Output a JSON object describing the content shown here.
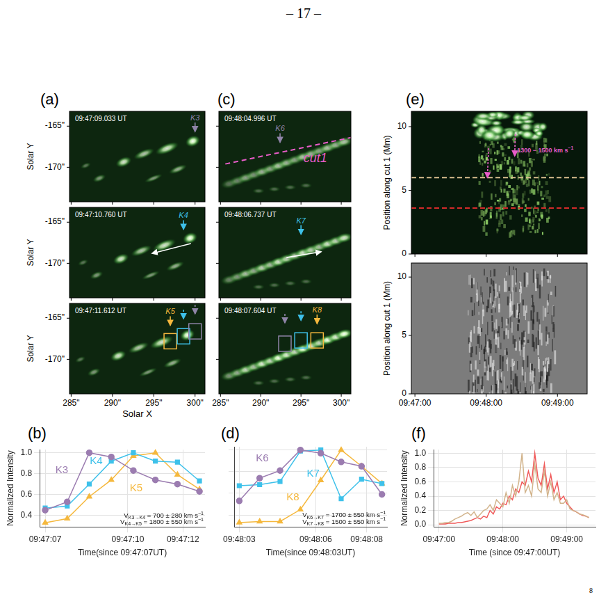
{
  "page": {
    "header": "– 17 –",
    "footer": "8"
  },
  "image_panels": [
    {
      "letter": "(a)",
      "xlabel": "Solar X",
      "ylabel": "Solar Y",
      "xlim": [
        284.8,
        301.2
      ],
      "ylim": [
        -174.2,
        -163.2
      ],
      "xticks": [
        {
          "value": 285,
          "label": "285\""
        },
        {
          "value": 290,
          "label": "290\""
        },
        {
          "value": 295,
          "label": "295\""
        },
        {
          "value": 300,
          "label": "300\""
        }
      ],
      "yticks": [
        {
          "value": -165,
          "label": "-165\""
        },
        {
          "value": -170,
          "label": "-170\""
        }
      ],
      "frames": [
        {
          "time": "09:47:09.033 UT",
          "arrows": [
            {
              "label": "K3",
              "x": 300,
              "y": -166.0,
              "color": "#8f84a8"
            }
          ]
        },
        {
          "time": "09:47:10.760 UT",
          "arrows": [
            {
              "label": "K4",
              "x": 298.6,
              "y": -166.2,
              "color": "#3ec1ea"
            }
          ],
          "direction": {
            "from": [
              299.5,
              -167.6
            ],
            "to": [
              294.8,
              -168.8
            ]
          }
        },
        {
          "time": "09:47:11.612 UT",
          "arrows": [
            {
              "label": "K5",
              "x": 297,
              "y": -166.2,
              "color": "#f5b83d"
            },
            {
              "x": 298.6,
              "y": -165.4,
              "color": "#3ec1ea",
              "line_style": "dashed"
            },
            {
              "x": 300,
              "y": -164.8,
              "color": "#8f84a8",
              "line_style": "dashed"
            }
          ],
          "boxes": [
            {
              "x": 297,
              "y": -167.8,
              "color": "#f5b83d"
            },
            {
              "x": 298.6,
              "y": -167.2,
              "color": "#3ec1ea"
            },
            {
              "x": 300,
              "y": -166.6,
              "color": "#8f84a8"
            }
          ]
        }
      ]
    },
    {
      "letter": "(c)",
      "tick_labels": "x",
      "xlim": [
        284.8,
        301.2
      ],
      "ylim": [
        -174.2,
        -163.2
      ],
      "xticks": [
        {
          "value": 285,
          "label": "285\""
        },
        {
          "value": 290,
          "label": "290\""
        },
        {
          "value": 295,
          "label": "295\""
        },
        {
          "value": 300,
          "label": "300\""
        }
      ],
      "yticks": [
        {
          "value": -165,
          "label": "-165\""
        },
        {
          "value": -170,
          "label": "-170\""
        }
      ],
      "frames": [
        {
          "time": "09:48:04.996 UT",
          "arrows": [
            {
              "label": "K6",
              "x": 292.4,
              "y": -167.3,
              "color": "#8f84a8"
            }
          ],
          "cut": {
            "label": "cut1",
            "from": [
              285.6,
              -169.6
            ],
            "to": [
              302.6,
              -166.1
            ],
            "label_at": [
              295.3,
              -169.4
            ],
            "color": "#e85cc8"
          }
        },
        {
          "time": "09:48:06.737 UT",
          "arrows": [
            {
              "label": "K7",
              "x": 295,
              "y": -166.8,
              "color": "#3ec1ea"
            }
          ],
          "direction": {
            "from": [
              293.2,
              -169.3
            ],
            "to": [
              297.5,
              -168.6
            ]
          }
        },
        {
          "time": "09:48:07.604 UT",
          "arrows": [
            {
              "label": "K8",
              "x": 297,
              "y": -166.0,
              "color": "#f5b83d"
            },
            {
              "x": 295,
              "y": -165.6,
              "color": "#3ec1ea",
              "line_style": "dashed"
            },
            {
              "x": 293,
              "y": -165.9,
              "color": "#8f84a8",
              "line_style": "dashed"
            }
          ],
          "boxes": [
            {
              "x": 293,
              "y": -168.1,
              "color": "#8f84a8"
            },
            {
              "x": 295,
              "y": -167.7,
              "color": "#3ec1ea"
            },
            {
              "x": 297,
              "y": -167.7,
              "color": "#f5b83d"
            }
          ]
        }
      ]
    },
    {
      "letter": "(e)",
      "ylabel": "Position along cut 1 (Mm)",
      "xlim": [
        -3,
        145
      ],
      "ylim": [
        0,
        11.2
      ],
      "xticks": [
        {
          "value": 0,
          "label": "09:47:00"
        },
        {
          "value": 60,
          "label": "09:48:00"
        },
        {
          "value": 120,
          "label": "09:49:00"
        }
      ],
      "yticks": [
        0,
        5,
        10
      ],
      "frames": [
        {
          "lines": [
            {
              "y": 6.0,
              "color": "#d9bf8f",
              "line_style": "dashed"
            },
            {
              "y": 3.6,
              "color": "#d42a2a",
              "line_style": "dashed"
            }
          ],
          "arrows": [
            {
              "from": [
                62,
                8.3
              ],
              "to": [
                61,
                6.0
              ],
              "color": "#e85cc8",
              "line_style": "dashed"
            },
            {
              "from": [
                84.5,
                9.4
              ],
              "to": [
                84,
                7.7
              ],
              "color": "#e85cc8",
              "line_style": "dashed"
            }
          ],
          "text": {
            "text": "1300 − 1500 km s",
            "sup": "−1",
            "x": 86,
            "y": 8.1,
            "color": "#e85cc8"
          }
        },
        {}
      ]
    }
  ],
  "chart_data": [
    {
      "type": "line",
      "letter": "(b)",
      "xlabel": "Time(since 09:47:07UT)",
      "ylabel": "Normalized Intensity",
      "x": [
        0,
        0.8,
        1.6,
        2.4,
        3.2,
        4.0,
        4.8,
        5.6
      ],
      "xlim": [
        -0.2,
        5.8
      ],
      "xticks": [
        {
          "value": 0,
          "label": "09:47:07"
        },
        {
          "value": 3,
          "label": "09:47:10"
        },
        {
          "value": 5,
          "label": "09:47:12"
        }
      ],
      "ylim": [
        0.29,
        1.03
      ],
      "yticks": [
        0.4,
        0.6,
        0.8,
        {
          "value": 1,
          "label": "1.0"
        }
      ],
      "grid": true,
      "series": [
        {
          "name": "K3",
          "color": "#9b7cb0",
          "marker": "circle",
          "label_position": [
            0.6,
            0.83
          ],
          "values": [
            0.45,
            0.53,
            1.0,
            0.96,
            0.83,
            0.74,
            0.7,
            0.63
          ]
        },
        {
          "name": "K4",
          "color": "#3ec1ea",
          "marker": "square",
          "label_position": [
            1.85,
            0.92
          ],
          "values": [
            0.47,
            0.49,
            0.7,
            0.92,
            1.0,
            0.92,
            0.91,
            0.73
          ]
        },
        {
          "name": "K5",
          "color": "#f5b83d",
          "marker": "triangle",
          "label_position": [
            3.3,
            0.66
          ],
          "values": [
            0.33,
            0.37,
            0.58,
            0.74,
            0.97,
            1.0,
            0.79,
            0.65
          ]
        }
      ],
      "annotations": [
        {
          "text": "V",
          "sub": "K3→K4",
          "after": " = 700 ± 280 km s",
          "sup": "−1",
          "x": 5.75,
          "y": 0.395
        },
        {
          "text": "V",
          "sub": "K4→K5",
          "after": " = 1800 ± 550 km s",
          "sup": "−1",
          "x": 5.75,
          "y": 0.335
        }
      ]
    },
    {
      "type": "line",
      "letter": "(d)",
      "xlabel": "Time(since 09:48:03UT)",
      "tick_labels": "x",
      "x": [
        0,
        0.8,
        1.6,
        2.4,
        3.2,
        4.0,
        4.8,
        5.6
      ],
      "xlim": [
        -0.2,
        5.8
      ],
      "xticks": [
        {
          "value": 0,
          "label": "09:48:03"
        },
        {
          "value": 3,
          "label": "09:48:06"
        },
        {
          "value": 5,
          "label": "09:48:08"
        }
      ],
      "ylim": [
        0.29,
        1.03
      ],
      "yticks": [
        0.4,
        0.6,
        0.8,
        {
          "value": 1,
          "label": "1.0"
        }
      ],
      "grid": true,
      "series": [
        {
          "name": "K6",
          "color": "#9b7cb0",
          "marker": "circle",
          "label_position": [
            0.9,
            0.92
          ],
          "values": [
            0.53,
            0.74,
            0.81,
            1.0,
            0.97,
            0.89,
            0.85,
            0.59
          ]
        },
        {
          "name": "K7",
          "color": "#3ec1ea",
          "marker": "square",
          "label_position": [
            2.9,
            0.78
          ],
          "values": [
            0.67,
            0.68,
            0.71,
            0.99,
            1.0,
            0.55,
            0.73,
            0.69
          ]
        },
        {
          "name": "K8",
          "color": "#f5b83d",
          "marker": "triangle",
          "label_position": [
            2.1,
            0.56
          ],
          "values": [
            0.33,
            0.34,
            0.34,
            0.45,
            0.72,
            1.0,
            0.85,
            0.69
          ]
        }
      ],
      "annotations": [
        {
          "text": "V",
          "sub": "K6→K7",
          "after": " = 1700 ± 550 km s",
          "sup": "−1",
          "x": 5.75,
          "y": 0.395
        },
        {
          "text": "V",
          "sub": "K7→K8",
          "after": " = 1500 ± 550 km s",
          "sup": "−1",
          "x": 5.75,
          "y": 0.335
        }
      ]
    },
    {
      "type": "line",
      "letter": "(f)",
      "xlabel": "Time (since 09:47:00UT)",
      "ylabel": "Normalized Intensity",
      "x": [
        0,
        3,
        6,
        9,
        12,
        15,
        18,
        21,
        24,
        27,
        30,
        33,
        36,
        39,
        42,
        45,
        48,
        51,
        54,
        57,
        60,
        63,
        66,
        69,
        72,
        75,
        78,
        81,
        84,
        87,
        90,
        93,
        96,
        99,
        102,
        105,
        108,
        111,
        114,
        117,
        120,
        123,
        126,
        129,
        132,
        135,
        138,
        141
      ],
      "xlim": [
        -5,
        147
      ],
      "xticks": [
        {
          "value": 0,
          "label": "09:47:00"
        },
        {
          "value": 60,
          "label": "09:48:00"
        },
        {
          "value": 120,
          "label": "09:49:00"
        }
      ],
      "ylim": [
        -0.03,
        1.05
      ],
      "yticks": [
        {
          "value": 0,
          "label": "0.0"
        },
        0.2,
        0.4,
        0.6,
        0.8,
        {
          "value": 1,
          "label": "1.0"
        }
      ],
      "grid": true,
      "series": [
        {
          "color": "#d2b48c",
          "values": [
            0.02,
            0.02,
            0.03,
            0.03,
            0.05,
            0.08,
            0.1,
            0.12,
            0.15,
            0.17,
            0.13,
            0.18,
            0.1,
            0.15,
            0.2,
            0.22,
            0.28,
            0.2,
            0.35,
            0.3,
            0.25,
            0.45,
            0.3,
            0.55,
            0.4,
            0.6,
            1.0,
            0.45,
            0.55,
            0.4,
            0.85,
            0.5,
            0.45,
            0.75,
            0.4,
            0.6,
            0.35,
            0.45,
            0.3,
            0.3,
            0.35,
            0.22,
            0.2,
            0.18,
            0.15,
            0.14,
            0.12,
            0.1
          ]
        },
        {
          "color": "#f05a5a",
          "values": [
            0.01,
            0.01,
            0.01,
            0.02,
            0.02,
            0.02,
            0.03,
            0.03,
            0.04,
            0.05,
            0.06,
            0.08,
            0.1,
            0.08,
            0.12,
            0.1,
            0.2,
            0.15,
            0.25,
            0.22,
            0.3,
            0.28,
            0.4,
            0.35,
            0.5,
            0.45,
            0.6,
            0.55,
            0.75,
            0.6,
            1.0,
            0.65,
            0.55,
            0.85,
            0.5,
            0.7,
            0.45,
            0.6,
            0.35,
            0.4,
            0.3,
            0.25,
            0.2,
            0.18,
            0.15,
            0.13,
            0.12,
            0.1
          ]
        }
      ]
    }
  ]
}
